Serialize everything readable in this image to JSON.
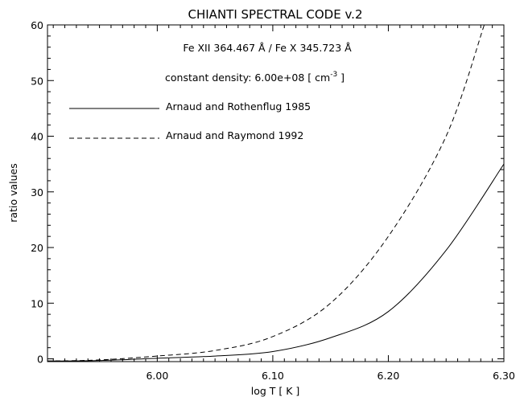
{
  "chart_data": {
    "type": "line",
    "title": "CHIANTI SPECTRAL CODE v.2",
    "xlabel": "log T [ K ]",
    "ylabel": "ratio values",
    "xlim": [
      5.905,
      6.3
    ],
    "ylim": [
      -0.5,
      60
    ],
    "xticks": [
      6.0,
      6.1,
      6.2,
      6.3
    ],
    "xtick_labels": [
      "6.00",
      "6.10",
      "6.20",
      "6.30"
    ],
    "yticks": [
      0,
      10,
      20,
      30,
      40,
      50,
      60
    ],
    "ytick_labels": [
      "0",
      "10",
      "20",
      "30",
      "40",
      "50",
      "60"
    ],
    "grid": false,
    "legend_position": "top-left",
    "annotations": {
      "ratio": "Fe XII 364.467 Å / Fe X 345.723 Å",
      "density_prefix": "constant density: 6.00e+08 [ cm",
      "density_exp": "-3",
      "density_suffix": " ]"
    },
    "series": [
      {
        "name": "Arnaud and Rothenflug 1985",
        "line_style": "solid",
        "x": [
          5.905,
          5.95,
          6.0,
          6.05,
          6.1,
          6.15,
          6.2,
          6.25,
          6.3
        ],
        "y": [
          -0.4,
          -0.3,
          0.1,
          0.5,
          1.3,
          3.8,
          8.5,
          19.5,
          35.0
        ]
      },
      {
        "name": "Arnaud and Raymond 1992",
        "line_style": "dashed",
        "x": [
          5.905,
          5.95,
          6.0,
          6.05,
          6.1,
          6.15,
          6.2,
          6.25,
          6.283
        ],
        "y": [
          -0.4,
          -0.2,
          0.5,
          1.5,
          4.0,
          10.0,
          22.0,
          40.0,
          60.0
        ]
      }
    ]
  }
}
